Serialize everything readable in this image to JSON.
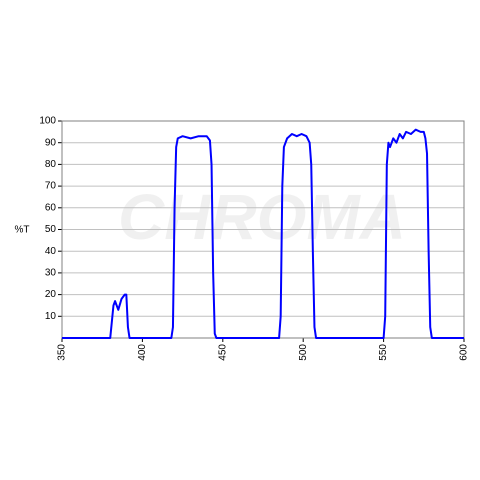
{
  "chart_data": {
    "type": "line",
    "y_label": "%T",
    "watermark": "CHROMA",
    "x": [
      350,
      380,
      382,
      383,
      385,
      387,
      389,
      390,
      391,
      392,
      418,
      419,
      420,
      421,
      422,
      425,
      430,
      435,
      440,
      442,
      443,
      444,
      445,
      446,
      485,
      486,
      487,
      488,
      490,
      493,
      496,
      499,
      502,
      504,
      505,
      506,
      507,
      508,
      550,
      551,
      552,
      553,
      554,
      556,
      558,
      560,
      562,
      564,
      567,
      570,
      573,
      575,
      576,
      577,
      578,
      579,
      580,
      600
    ],
    "values": [
      0,
      0,
      15,
      17,
      13,
      18,
      20,
      20,
      5,
      0,
      0,
      5,
      60,
      88,
      92,
      93,
      92,
      93,
      93,
      91,
      80,
      30,
      2,
      0,
      0,
      10,
      70,
      88,
      92,
      94,
      93,
      94,
      93,
      90,
      80,
      40,
      5,
      0,
      0,
      10,
      80,
      90,
      88,
      92,
      90,
      94,
      92,
      95,
      94,
      96,
      95,
      95,
      92,
      85,
      40,
      5,
      0,
      0
    ],
    "color": "#0000ff",
    "xlim": [
      350,
      600
    ],
    "xticks": [
      350,
      400,
      450,
      500,
      550,
      600
    ],
    "ylim": [
      0,
      100
    ],
    "yticks": [
      10,
      20,
      30,
      40,
      50,
      60,
      70,
      80,
      90,
      100
    ],
    "grid": true
  }
}
